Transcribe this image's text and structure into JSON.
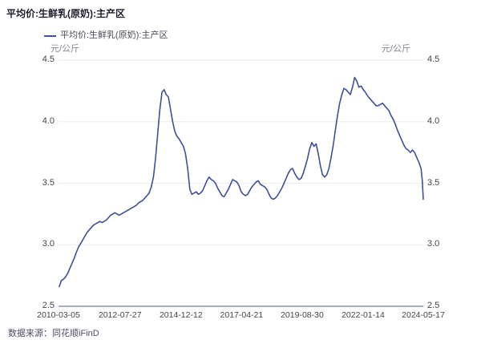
{
  "title": "平均价:生鲜乳(原奶):主产区",
  "legend": {
    "label": "平均价:生鲜乳(原奶):主产区",
    "marker_color": "#3E4F9C"
  },
  "unit_left": "元/公斤",
  "unit_right": "元/公斤",
  "source": "数据来源：同花顺iFinD",
  "colors": {
    "line": "#3E4F9C",
    "grid": "#EAEAF1",
    "axis": "#A8AEBD",
    "tick_text": "#45454F",
    "unit_text": "#85858F",
    "title_text": "#1C1C2E",
    "source_text": "#4D4D68"
  },
  "chart_data": {
    "type": "line",
    "title": "平均价:生鲜乳(原奶):主产区",
    "ylabel": "元/公斤",
    "ylim": [
      2.5,
      4.5
    ],
    "yticks": [
      2.5,
      3.0,
      3.5,
      4.0,
      4.5
    ],
    "grid": true,
    "legend_position": "top-left",
    "xtick_labels": [
      "2010-03-05",
      "2012-07-27",
      "2014-12-12",
      "2017-04-21",
      "2019-08-30",
      "2022-01-14",
      "2024-05-17"
    ],
    "series": [
      {
        "name": "平均价:生鲜乳(原奶):主产区",
        "color": "#3E4F9C",
        "points": [
          [
            "2010-03",
            2.66
          ],
          [
            "2010-04",
            2.71
          ],
          [
            "2010-05",
            2.72
          ],
          [
            "2010-06",
            2.74
          ],
          [
            "2010-07",
            2.77
          ],
          [
            "2010-08",
            2.81
          ],
          [
            "2010-09",
            2.85
          ],
          [
            "2010-10",
            2.89
          ],
          [
            "2010-11",
            2.94
          ],
          [
            "2010-12",
            2.98
          ],
          [
            "2011-01",
            3.01
          ],
          [
            "2011-02",
            3.04
          ],
          [
            "2011-03",
            3.07
          ],
          [
            "2011-04",
            3.1
          ],
          [
            "2011-05",
            3.12
          ],
          [
            "2011-06",
            3.14
          ],
          [
            "2011-07",
            3.16
          ],
          [
            "2011-08",
            3.17
          ],
          [
            "2011-09",
            3.18
          ],
          [
            "2011-10",
            3.19
          ],
          [
            "2011-11",
            3.18
          ],
          [
            "2011-12",
            3.19
          ],
          [
            "2012-01",
            3.2
          ],
          [
            "2012-02",
            3.22
          ],
          [
            "2012-03",
            3.24
          ],
          [
            "2012-04",
            3.25
          ],
          [
            "2012-05",
            3.26
          ],
          [
            "2012-06",
            3.25
          ],
          [
            "2012-07",
            3.24
          ],
          [
            "2012-08",
            3.25
          ],
          [
            "2012-09",
            3.26
          ],
          [
            "2012-10",
            3.27
          ],
          [
            "2012-11",
            3.28
          ],
          [
            "2012-12",
            3.29
          ],
          [
            "2013-01",
            3.3
          ],
          [
            "2013-02",
            3.31
          ],
          [
            "2013-03",
            3.32
          ],
          [
            "2013-04",
            3.34
          ],
          [
            "2013-05",
            3.35
          ],
          [
            "2013-06",
            3.36
          ],
          [
            "2013-07",
            3.38
          ],
          [
            "2013-08",
            3.4
          ],
          [
            "2013-09",
            3.42
          ],
          [
            "2013-10",
            3.47
          ],
          [
            "2013-11",
            3.55
          ],
          [
            "2013-12",
            3.7
          ],
          [
            "2014-01",
            3.9
          ],
          [
            "2014-02",
            4.1
          ],
          [
            "2014-03",
            4.24
          ],
          [
            "2014-04",
            4.26
          ],
          [
            "2014-05",
            4.22
          ],
          [
            "2014-06",
            4.2
          ],
          [
            "2014-07",
            4.1
          ],
          [
            "2014-08",
            4.0
          ],
          [
            "2014-09",
            3.92
          ],
          [
            "2014-10",
            3.88
          ],
          [
            "2014-11",
            3.86
          ],
          [
            "2014-12",
            3.83
          ],
          [
            "2015-01",
            3.8
          ],
          [
            "2015-02",
            3.74
          ],
          [
            "2015-03",
            3.62
          ],
          [
            "2015-04",
            3.45
          ],
          [
            "2015-05",
            3.41
          ],
          [
            "2015-06",
            3.42
          ],
          [
            "2015-07",
            3.43
          ],
          [
            "2015-08",
            3.41
          ],
          [
            "2015-09",
            3.42
          ],
          [
            "2015-10",
            3.44
          ],
          [
            "2015-11",
            3.48
          ],
          [
            "2015-12",
            3.52
          ],
          [
            "2016-01",
            3.55
          ],
          [
            "2016-02",
            3.53
          ],
          [
            "2016-03",
            3.52
          ],
          [
            "2016-04",
            3.5
          ],
          [
            "2016-05",
            3.46
          ],
          [
            "2016-06",
            3.43
          ],
          [
            "2016-07",
            3.4
          ],
          [
            "2016-08",
            3.39
          ],
          [
            "2016-09",
            3.42
          ],
          [
            "2016-10",
            3.45
          ],
          [
            "2016-11",
            3.49
          ],
          [
            "2016-12",
            3.53
          ],
          [
            "2017-01",
            3.52
          ],
          [
            "2017-02",
            3.51
          ],
          [
            "2017-03",
            3.48
          ],
          [
            "2017-04",
            3.43
          ],
          [
            "2017-05",
            3.41
          ],
          [
            "2017-06",
            3.4
          ],
          [
            "2017-07",
            3.41
          ],
          [
            "2017-08",
            3.44
          ],
          [
            "2017-09",
            3.47
          ],
          [
            "2017-10",
            3.49
          ],
          [
            "2017-11",
            3.51
          ],
          [
            "2017-12",
            3.52
          ],
          [
            "2018-01",
            3.49
          ],
          [
            "2018-02",
            3.48
          ],
          [
            "2018-03",
            3.47
          ],
          [
            "2018-04",
            3.45
          ],
          [
            "2018-05",
            3.41
          ],
          [
            "2018-06",
            3.38
          ],
          [
            "2018-07",
            3.37
          ],
          [
            "2018-08",
            3.38
          ],
          [
            "2018-09",
            3.4
          ],
          [
            "2018-10",
            3.43
          ],
          [
            "2018-11",
            3.46
          ],
          [
            "2018-12",
            3.5
          ],
          [
            "2019-01",
            3.54
          ],
          [
            "2019-02",
            3.58
          ],
          [
            "2019-03",
            3.61
          ],
          [
            "2019-04",
            3.62
          ],
          [
            "2019-05",
            3.58
          ],
          [
            "2019-06",
            3.55
          ],
          [
            "2019-07",
            3.53
          ],
          [
            "2019-08",
            3.54
          ],
          [
            "2019-09",
            3.58
          ],
          [
            "2019-10",
            3.64
          ],
          [
            "2019-11",
            3.7
          ],
          [
            "2019-12",
            3.78
          ],
          [
            "2020-01",
            3.83
          ],
          [
            "2020-02",
            3.8
          ],
          [
            "2020-03",
            3.82
          ],
          [
            "2020-04",
            3.74
          ],
          [
            "2020-05",
            3.64
          ],
          [
            "2020-06",
            3.57
          ],
          [
            "2020-07",
            3.55
          ],
          [
            "2020-08",
            3.57
          ],
          [
            "2020-09",
            3.62
          ],
          [
            "2020-10",
            3.71
          ],
          [
            "2020-11",
            3.81
          ],
          [
            "2020-12",
            3.93
          ],
          [
            "2021-01",
            4.05
          ],
          [
            "2021-02",
            4.15
          ],
          [
            "2021-03",
            4.22
          ],
          [
            "2021-04",
            4.27
          ],
          [
            "2021-05",
            4.26
          ],
          [
            "2021-06",
            4.24
          ],
          [
            "2021-07",
            4.22
          ],
          [
            "2021-08",
            4.28
          ],
          [
            "2021-09",
            4.36
          ],
          [
            "2021-10",
            4.33
          ],
          [
            "2021-11",
            4.28
          ],
          [
            "2021-12",
            4.29
          ],
          [
            "2022-01",
            4.26
          ],
          [
            "2022-02",
            4.24
          ],
          [
            "2022-03",
            4.21
          ],
          [
            "2022-04",
            4.19
          ],
          [
            "2022-05",
            4.17
          ],
          [
            "2022-06",
            4.15
          ],
          [
            "2022-07",
            4.13
          ],
          [
            "2022-08",
            4.13
          ],
          [
            "2022-09",
            4.14
          ],
          [
            "2022-10",
            4.15
          ],
          [
            "2022-11",
            4.13
          ],
          [
            "2022-12",
            4.11
          ],
          [
            "2023-01",
            4.09
          ],
          [
            "2023-02",
            4.05
          ],
          [
            "2023-03",
            4.02
          ],
          [
            "2023-04",
            3.98
          ],
          [
            "2023-05",
            3.93
          ],
          [
            "2023-06",
            3.89
          ],
          [
            "2023-07",
            3.85
          ],
          [
            "2023-08",
            3.81
          ],
          [
            "2023-09",
            3.78
          ],
          [
            "2023-10",
            3.77
          ],
          [
            "2023-11",
            3.75
          ],
          [
            "2023-12",
            3.77
          ],
          [
            "2024-01",
            3.75
          ],
          [
            "2024-02",
            3.71
          ],
          [
            "2024-03",
            3.67
          ],
          [
            "2024-04",
            3.62
          ],
          [
            "2024-05-03",
            3.52
          ],
          [
            "2024-05-10",
            3.44
          ],
          [
            "2024-05-17",
            3.37
          ]
        ]
      }
    ]
  }
}
